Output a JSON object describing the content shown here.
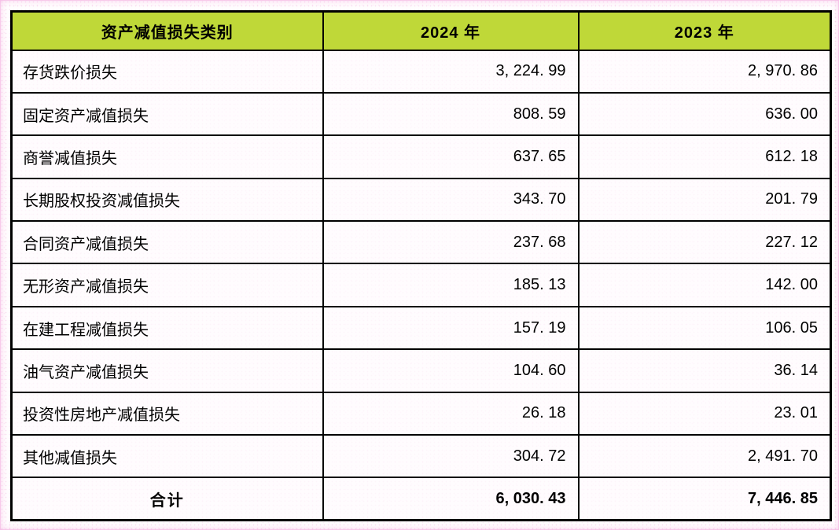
{
  "page": {
    "accent_color": "#bfd838",
    "border_color": "#000000",
    "background_speckle_color": "#ee8cd2"
  },
  "table": {
    "columns": [
      "资产减值损失类别",
      "2024 年",
      "2023 年"
    ],
    "rows": [
      {
        "label": "存货跌价损失",
        "y2024": "3, 224. 99",
        "y2023": "2, 970. 86"
      },
      {
        "label": "固定资产减值损失",
        "y2024": "808. 59",
        "y2023": "636. 00"
      },
      {
        "label": "商誉减值损失",
        "y2024": "637. 65",
        "y2023": "612. 18"
      },
      {
        "label": "长期股权投资减值损失",
        "y2024": "343. 70",
        "y2023": "201. 79"
      },
      {
        "label": "合同资产减值损失",
        "y2024": "237. 68",
        "y2023": "227. 12"
      },
      {
        "label": "无形资产减值损失",
        "y2024": "185. 13",
        "y2023": "142. 00"
      },
      {
        "label": "在建工程减值损失",
        "y2024": "157. 19",
        "y2023": "106. 05"
      },
      {
        "label": "油气资产减值损失",
        "y2024": "104. 60",
        "y2023": "36. 14"
      },
      {
        "label": "投资性房地产减值损失",
        "y2024": "26. 18",
        "y2023": "23. 01"
      },
      {
        "label": "其他减值损失",
        "y2024": "304. 72",
        "y2023": "2, 491. 70"
      }
    ],
    "total": {
      "label": "合计",
      "y2024": "6, 030. 43",
      "y2023": "7, 446. 85"
    }
  }
}
